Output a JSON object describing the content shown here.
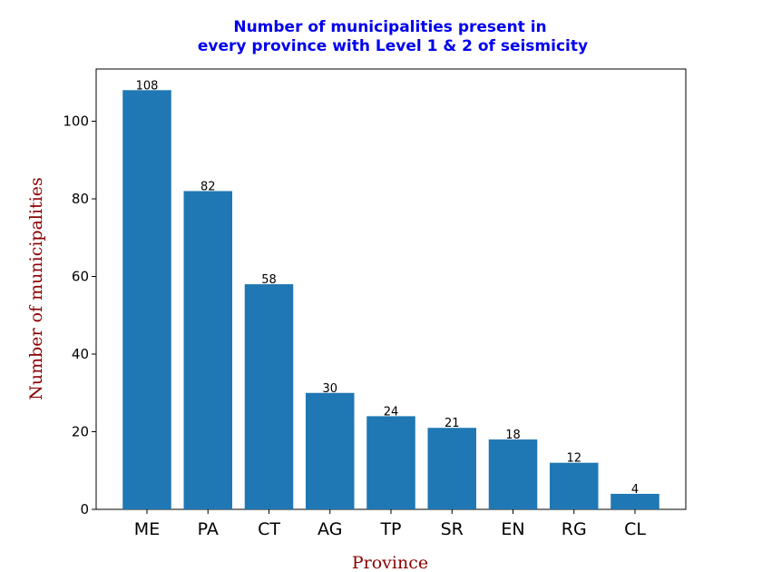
{
  "chart_data": {
    "type": "bar",
    "title_lines": [
      "Number of municipalities present in",
      "every province with Level 1 & 2 of seismicity"
    ],
    "xlabel": "Province",
    "ylabel": "Number of municipalities",
    "categories": [
      "ME",
      "PA",
      "CT",
      "AG",
      "TP",
      "SR",
      "EN",
      "RG",
      "CL"
    ],
    "values": [
      108,
      82,
      58,
      30,
      24,
      21,
      18,
      12,
      4
    ],
    "ylim": [
      0,
      113
    ],
    "yticks": [
      "0",
      "20",
      "40",
      "60",
      "80",
      "100"
    ],
    "grid": false,
    "legend": "none",
    "colors": {
      "bar": "#1f77b4",
      "title": "#0000ee",
      "axis_label": "#8b0000"
    }
  }
}
